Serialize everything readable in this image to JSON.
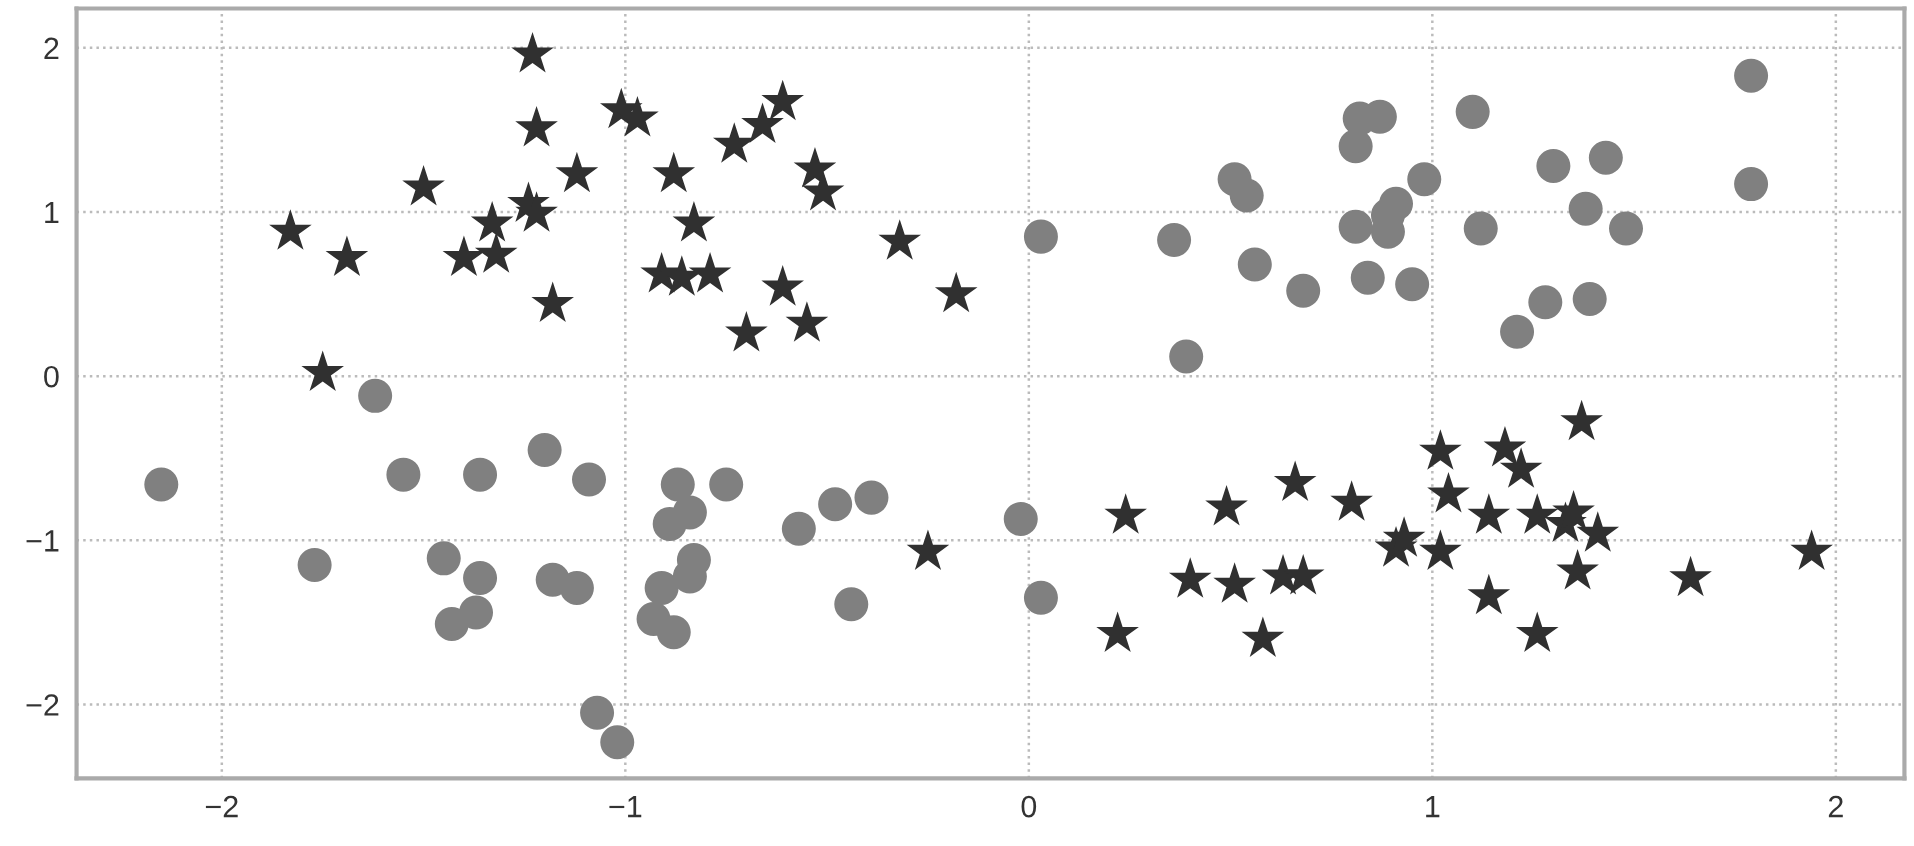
{
  "chart_data": {
    "type": "scatter",
    "xlim": [
      -2.36,
      2.17
    ],
    "ylim": [
      -2.45,
      2.24
    ],
    "xticks": [
      -2,
      -1,
      0,
      1,
      2
    ],
    "yticks": [
      -2,
      -1,
      0,
      1,
      2
    ],
    "grid": true,
    "legend": false,
    "series": [
      {
        "color": "#808080",
        "marker": "circle",
        "x": [
          0.03,
          0.36,
          0.39,
          0.51,
          0.54,
          0.56,
          0.68,
          0.81,
          0.82,
          0.87,
          0.81,
          0.84,
          0.95,
          0.98,
          0.91,
          0.89,
          0.89,
          1.1,
          1.12,
          1.3,
          1.43,
          1.38,
          1.48,
          1.28,
          1.39,
          1.21,
          1.79,
          1.79,
          -2.15,
          -1.62,
          -1.55,
          -1.36,
          -1.77,
          -1.45,
          -1.36,
          -1.37,
          -1.43,
          -1.2,
          -1.18,
          -1.12,
          -1.09,
          -0.87,
          -0.84,
          -0.89,
          -0.75,
          -0.83,
          -0.84,
          -0.91,
          -0.93,
          -0.88,
          -1.07,
          -1.02,
          -0.57,
          -0.48,
          -0.39,
          -0.44,
          -0.02,
          0.03
        ],
        "values": [
          0.85,
          0.83,
          0.12,
          1.2,
          1.1,
          0.68,
          0.52,
          0.91,
          1.57,
          1.58,
          1.4,
          0.6,
          0.56,
          1.2,
          1.05,
          0.98,
          0.88,
          1.61,
          0.9,
          1.28,
          1.33,
          1.02,
          0.9,
          0.45,
          0.47,
          0.27,
          1.83,
          1.17,
          -0.66,
          -0.12,
          -0.6,
          -0.6,
          -1.15,
          -1.11,
          -1.23,
          -1.44,
          -1.51,
          -0.45,
          -1.24,
          -1.29,
          -0.63,
          -0.66,
          -0.83,
          -0.9,
          -0.66,
          -1.12,
          -1.22,
          -1.29,
          -1.48,
          -1.56,
          -2.05,
          -2.23,
          -0.93,
          -0.78,
          -0.74,
          -1.39,
          -0.87,
          -1.35
        ]
      },
      {
        "color": "#303030",
        "marker": "star",
        "x": [
          -1.23,
          -1.22,
          -1.5,
          -1.83,
          -1.69,
          -1.33,
          -1.4,
          -1.32,
          -1.24,
          -1.22,
          -1.18,
          -1.75,
          -1.12,
          -1.01,
          -0.97,
          -0.88,
          -0.83,
          -0.91,
          -0.86,
          -0.79,
          -0.73,
          -0.66,
          -0.61,
          -0.53,
          -0.51,
          -0.61,
          -0.7,
          -0.55,
          -0.32,
          -0.18,
          -0.25,
          0.24,
          0.22,
          0.4,
          0.49,
          0.51,
          0.58,
          0.63,
          0.68,
          0.66,
          0.8,
          0.91,
          0.93,
          1.02,
          1.04,
          1.02,
          1.14,
          1.14,
          1.18,
          1.22,
          1.26,
          1.26,
          1.33,
          1.35,
          1.41,
          1.36,
          1.37,
          1.64,
          1.94
        ],
        "values": [
          1.96,
          1.51,
          1.15,
          0.88,
          0.72,
          0.93,
          0.72,
          0.74,
          1.05,
          0.99,
          0.44,
          0.02,
          1.23,
          1.62,
          1.57,
          1.23,
          0.93,
          0.62,
          0.6,
          0.62,
          1.41,
          1.53,
          1.67,
          1.26,
          1.12,
          0.54,
          0.26,
          0.32,
          0.82,
          0.5,
          -1.07,
          -0.85,
          -1.57,
          -1.24,
          -0.8,
          -1.27,
          -1.6,
          -1.22,
          -1.22,
          -0.65,
          -0.77,
          -1.05,
          -0.99,
          -0.46,
          -0.72,
          -1.07,
          -0.85,
          -1.34,
          -0.44,
          -0.57,
          -0.85,
          -1.57,
          -0.9,
          -0.83,
          -0.96,
          -1.19,
          -0.28,
          -1.23,
          -1.07
        ]
      }
    ]
  }
}
